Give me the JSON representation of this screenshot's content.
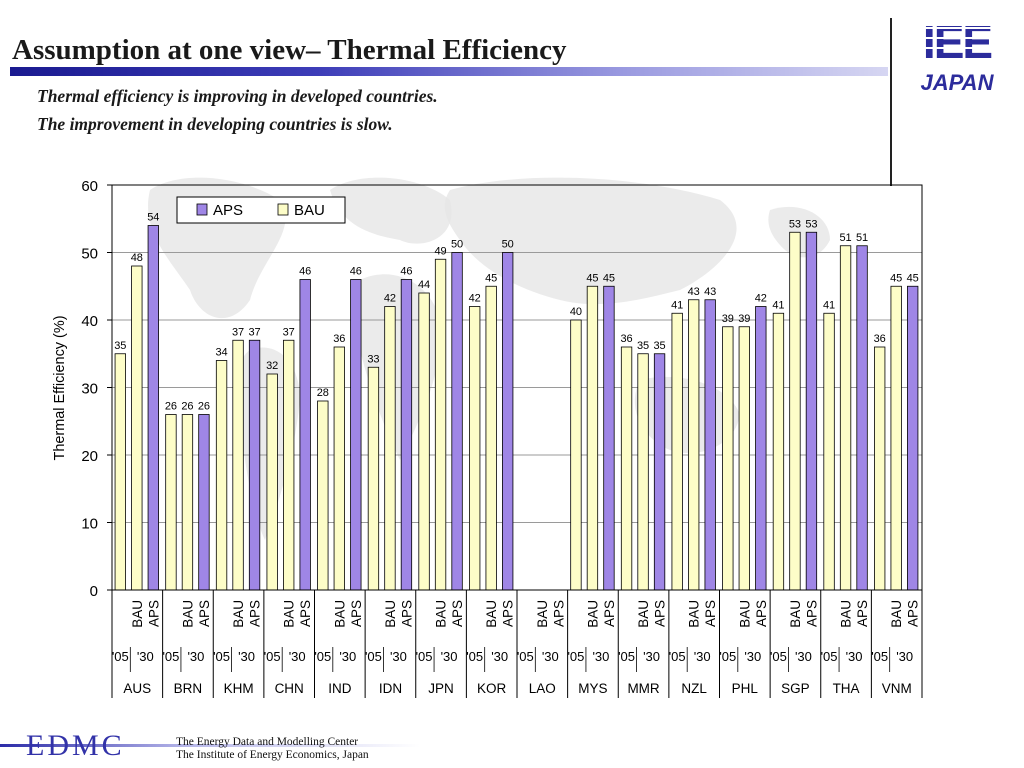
{
  "slide": {
    "title": "Assumption at one view– Thermal Efficiency",
    "subtitle_lines": [
      "Thermal efficiency is improving in developed countries.",
      "The improvement in developing countries is slow."
    ],
    "logo": {
      "top": "IEE",
      "bottom": "JAPAN"
    },
    "footer": {
      "brand": "EDMC",
      "line1": "The Energy Data and Modelling Center",
      "line2": "The Institute of Energy Economics, Japan"
    }
  },
  "colors": {
    "aps": "#9f86e6",
    "bau": "#fdfdc8",
    "title_rule": "#2a2aa0",
    "map": "#e6e6e6"
  },
  "chart_data": {
    "type": "bar",
    "ylabel": "Thermal Efficiency (%)",
    "ylim": [
      0,
      60
    ],
    "yticks": [
      0,
      10,
      20,
      30,
      40,
      50,
      60
    ],
    "legend": {
      "position": "top-left",
      "entries": [
        "APS",
        "BAU"
      ]
    },
    "slot_labels": [
      "BAU",
      "APS"
    ],
    "year_labels": [
      "'05",
      "'30"
    ],
    "countries": [
      {
        "name": "AUS",
        "bau05": 35,
        "bau30": 48,
        "aps30": 54
      },
      {
        "name": "BRN",
        "bau05": 26,
        "bau30": 26,
        "aps30": 26
      },
      {
        "name": "KHM",
        "bau05": 34,
        "bau30": 37,
        "aps30": 37
      },
      {
        "name": "CHN",
        "bau05": 32,
        "bau30": 37,
        "aps30": 46
      },
      {
        "name": "IND",
        "bau05": 28,
        "bau30": 36,
        "aps30": 46
      },
      {
        "name": "IDN",
        "bau05": 33,
        "bau30": 42,
        "aps30": 46
      },
      {
        "name": "JPN",
        "bau05": 44,
        "bau30": 49,
        "aps30": 50
      },
      {
        "name": "KOR",
        "bau05": 42,
        "bau30": 45,
        "aps30": 50
      },
      {
        "name": "LAO",
        "bau05": null,
        "bau30": null,
        "aps30": null
      },
      {
        "name": "MYS",
        "bau05": 40,
        "bau30": 45,
        "aps30": 45
      },
      {
        "name": "MMR",
        "bau05": 36,
        "bau30": 35,
        "aps30": 35
      },
      {
        "name": "NZL",
        "bau05": 41,
        "bau30": 43,
        "aps30": 43
      },
      {
        "name": "PHL",
        "bau05": 39,
        "bau30": 39,
        "aps30": 42
      },
      {
        "name": "SGP",
        "bau05": 41,
        "bau30": 53,
        "aps30": 53
      },
      {
        "name": "THA",
        "bau05": 41,
        "bau30": 51,
        "aps30": 51
      },
      {
        "name": "VNM",
        "bau05": 36,
        "bau30": 45,
        "aps30": 45
      }
    ]
  }
}
